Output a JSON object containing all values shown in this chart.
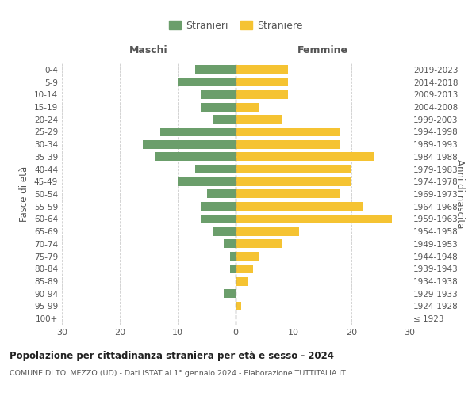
{
  "age_groups": [
    "100+",
    "95-99",
    "90-94",
    "85-89",
    "80-84",
    "75-79",
    "70-74",
    "65-69",
    "60-64",
    "55-59",
    "50-54",
    "45-49",
    "40-44",
    "35-39",
    "30-34",
    "25-29",
    "20-24",
    "15-19",
    "10-14",
    "5-9",
    "0-4"
  ],
  "birth_years": [
    "≤ 1923",
    "1924-1928",
    "1929-1933",
    "1934-1938",
    "1939-1943",
    "1944-1948",
    "1949-1953",
    "1954-1958",
    "1959-1963",
    "1964-1968",
    "1969-1973",
    "1974-1978",
    "1979-1983",
    "1984-1988",
    "1989-1993",
    "1994-1998",
    "1999-2003",
    "2004-2008",
    "2009-2013",
    "2014-2018",
    "2019-2023"
  ],
  "males": [
    0,
    0,
    2,
    0,
    1,
    1,
    2,
    4,
    6,
    6,
    5,
    10,
    7,
    14,
    16,
    13,
    4,
    6,
    6,
    10,
    7
  ],
  "females": [
    0,
    1,
    0,
    2,
    3,
    4,
    8,
    11,
    27,
    22,
    18,
    20,
    20,
    24,
    18,
    18,
    8,
    4,
    9,
    9,
    9
  ],
  "male_color": "#6b9e6b",
  "female_color": "#f5c332",
  "background_color": "#ffffff",
  "grid_color": "#cccccc",
  "title": "Popolazione per cittadinanza straniera per età e sesso - 2024",
  "subtitle": "COMUNE DI TOLMEZZO (UD) - Dati ISTAT al 1° gennaio 2024 - Elaborazione TUTTITALIA.IT",
  "xlabel_left": "Maschi",
  "xlabel_right": "Femmine",
  "ylabel_left": "Fasce di età",
  "ylabel_right": "Anni di nascita",
  "legend_male": "Stranieri",
  "legend_female": "Straniere",
  "xlim": 30,
  "dpi": 100,
  "figsize": [
    6.0,
    5.0
  ]
}
